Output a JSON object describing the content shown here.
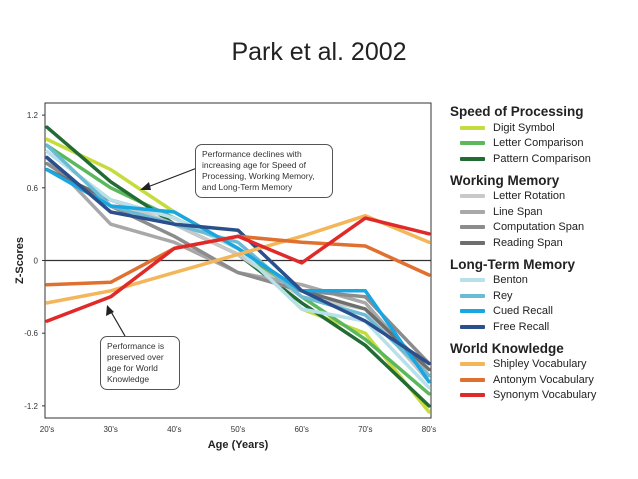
{
  "slide": {
    "title": "Park et al. 2002"
  },
  "callouts": {
    "decline": "Performance declines with increasing age for Speed of Processing, Working Memory, and Long-Term Memory",
    "preserve": "Performance is preserved over age for World Knowledge"
  },
  "chart_data": {
    "type": "line",
    "title": "",
    "xlabel": "Age (Years)",
    "ylabel": "Z-Scores",
    "categories": [
      "20's",
      "30's",
      "40's",
      "50's",
      "60's",
      "70's",
      "80's"
    ],
    "yticks": [
      1.2,
      0.6,
      0,
      -0.6,
      -1.2
    ],
    "ylim": [
      -1.3,
      1.3
    ],
    "grid": false,
    "legend_position": "right",
    "groups": [
      {
        "name": "Speed of Processing",
        "series": [
          {
            "name": "Digit Symbol",
            "color": "#c6dc3e",
            "values": [
              1.0,
              0.75,
              0.4,
              0.1,
              -0.4,
              -0.6,
              -1.25
            ]
          },
          {
            "name": "Letter Comparison",
            "color": "#5cb85c",
            "values": [
              0.95,
              0.6,
              0.35,
              0.1,
              -0.3,
              -0.65,
              -1.1
            ]
          },
          {
            "name": "Pattern Comparison",
            "color": "#236b35",
            "values": [
              1.1,
              0.65,
              0.3,
              0.05,
              -0.35,
              -0.7,
              -1.2
            ]
          }
        ]
      },
      {
        "name": "Working Memory",
        "series": [
          {
            "name": "Letter Rotation",
            "color": "#c9c9c9",
            "values": [
              0.9,
              0.5,
              0.3,
              0.05,
              -0.3,
              -0.4,
              -1.0
            ]
          },
          {
            "name": "Line Span",
            "color": "#a8a8a8",
            "values": [
              0.85,
              0.3,
              0.15,
              -0.1,
              -0.2,
              -0.35,
              -0.95
            ]
          },
          {
            "name": "Computation Span",
            "color": "#8c8c8c",
            "values": [
              0.8,
              0.45,
              0.2,
              -0.1,
              -0.25,
              -0.3,
              -0.85
            ]
          },
          {
            "name": "Reading Span",
            "color": "#6e6e6e",
            "values": [
              0.75,
              0.5,
              0.35,
              0.1,
              -0.25,
              -0.4,
              -0.9
            ]
          }
        ]
      },
      {
        "name": "Long-Term Memory",
        "series": [
          {
            "name": "Benton",
            "color": "#b7e0ea",
            "values": [
              0.9,
              0.5,
              0.35,
              0.1,
              -0.4,
              -0.5,
              -1.05
            ]
          },
          {
            "name": "Rey",
            "color": "#6cbbd4",
            "values": [
              0.95,
              0.45,
              0.3,
              0.15,
              -0.3,
              -0.45,
              -0.95
            ]
          },
          {
            "name": "Cued Recall",
            "color": "#1aa6e0",
            "values": [
              0.75,
              0.45,
              0.4,
              0.1,
              -0.25,
              -0.25,
              -1.0
            ]
          },
          {
            "name": "Free Recall",
            "color": "#2b4f8c",
            "values": [
              0.85,
              0.4,
              0.3,
              0.25,
              -0.25,
              -0.5,
              -0.85
            ]
          }
        ]
      },
      {
        "name": "World Knowledge",
        "series": [
          {
            "name": "Shipley Vocabulary",
            "color": "#f3b65a",
            "values": [
              -0.35,
              -0.25,
              -0.1,
              0.05,
              0.2,
              0.37,
              0.15
            ]
          },
          {
            "name": "Antonym Vocabulary",
            "color": "#e07030",
            "values": [
              -0.2,
              -0.18,
              0.1,
              0.2,
              0.15,
              0.12,
              -0.12
            ]
          },
          {
            "name": "Synonym Vocabulary",
            "color": "#e02a2a",
            "values": [
              -0.5,
              -0.3,
              0.1,
              0.2,
              -0.02,
              0.35,
              0.22
            ]
          }
        ]
      }
    ]
  }
}
